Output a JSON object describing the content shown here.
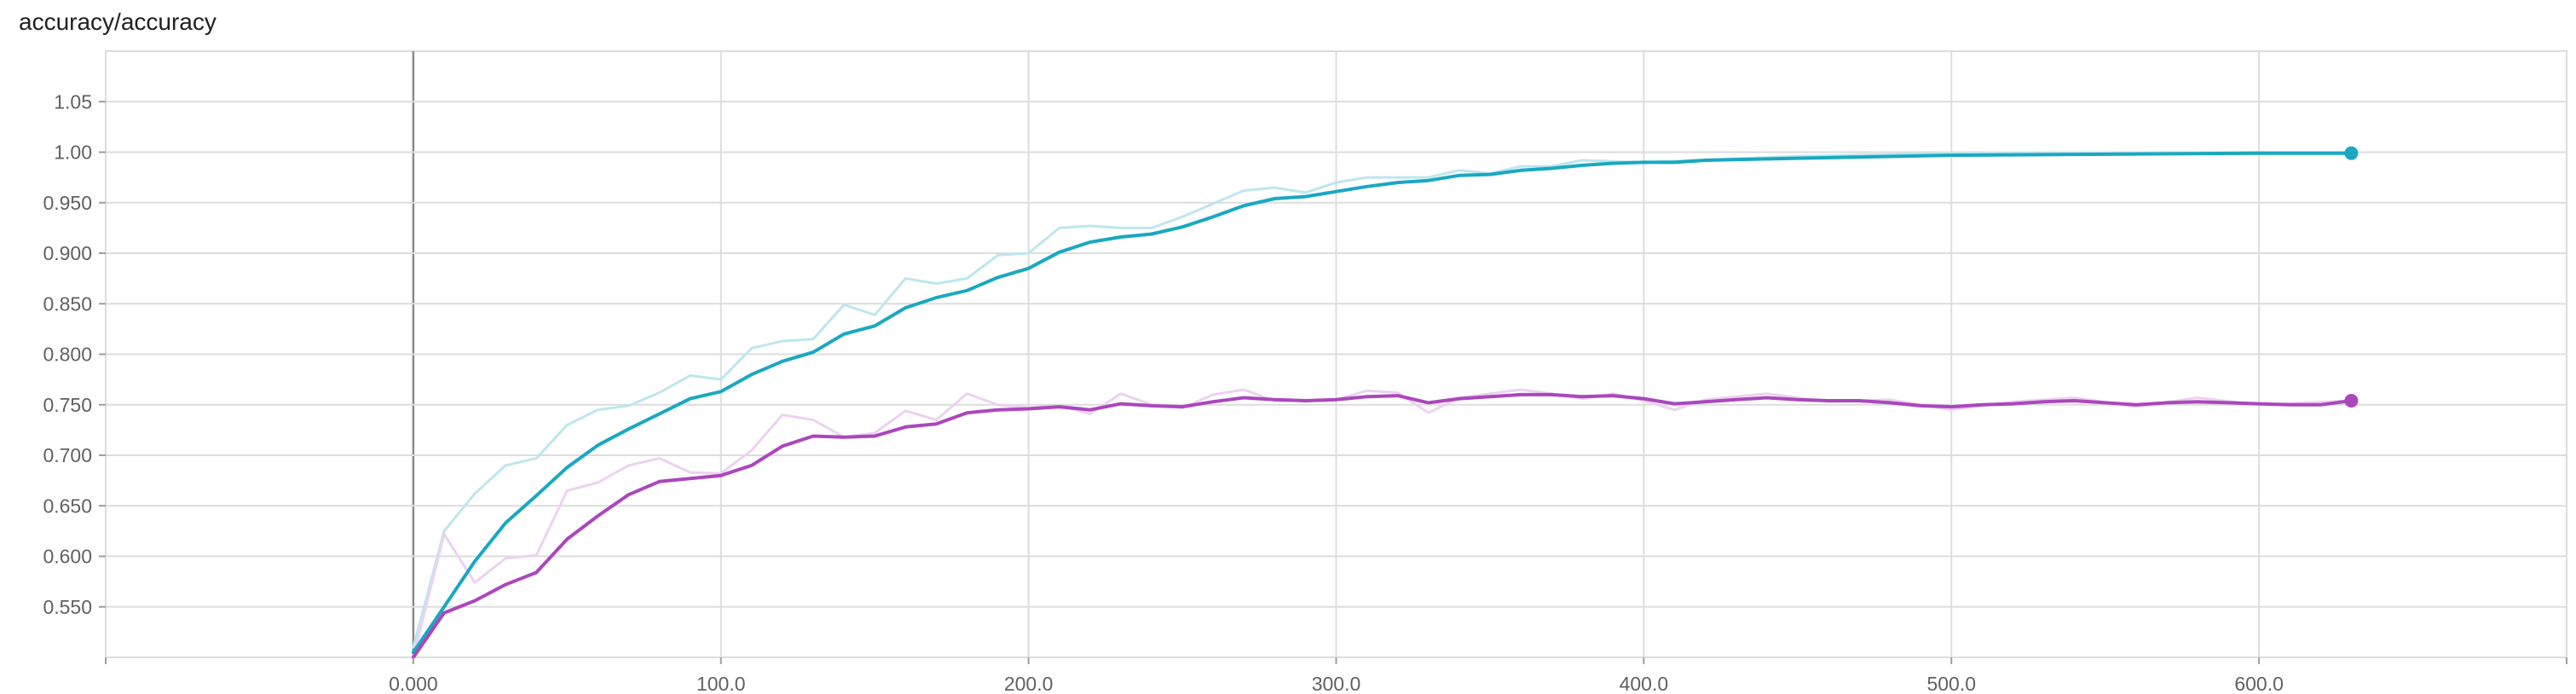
{
  "chart_data": {
    "type": "line",
    "title": "accuracy/accuracy",
    "xlabel": "",
    "ylabel": "",
    "xlim": [
      -100,
      700
    ],
    "ylim": [
      0.5,
      1.1
    ],
    "xticks": [
      0,
      100,
      200,
      300,
      400,
      500,
      600
    ],
    "xtick_labels": [
      "0.000",
      "100.0",
      "200.0",
      "300.0",
      "400.0",
      "500.0",
      "600.0"
    ],
    "yticks": [
      0.55,
      0.6,
      0.65,
      0.7,
      0.75,
      0.8,
      0.85,
      0.9,
      0.95,
      1.0,
      1.05
    ],
    "ytick_labels": [
      "0.550",
      "0.600",
      "0.650",
      "0.700",
      "0.750",
      "0.800",
      "0.850",
      "0.900",
      "0.950",
      "1.00",
      "1.05"
    ],
    "grid": true,
    "series": [
      {
        "name": "teal-smoothed",
        "color": "#1aa8c1",
        "x": [
          0,
          10,
          20,
          30,
          40,
          50,
          60,
          70,
          80,
          90,
          100,
          110,
          120,
          130,
          140,
          150,
          160,
          170,
          180,
          190,
          200,
          210,
          220,
          230,
          240,
          250,
          260,
          270,
          280,
          290,
          300,
          310,
          320,
          330,
          340,
          350,
          360,
          370,
          380,
          390,
          400,
          410,
          420,
          450,
          500,
          550,
          600,
          630
        ],
        "values": [
          0.505,
          0.55,
          0.595,
          0.633,
          0.66,
          0.688,
          0.71,
          0.726,
          0.741,
          0.756,
          0.763,
          0.78,
          0.793,
          0.802,
          0.82,
          0.828,
          0.846,
          0.856,
          0.863,
          0.876,
          0.885,
          0.901,
          0.911,
          0.916,
          0.919,
          0.926,
          0.936,
          0.947,
          0.954,
          0.956,
          0.961,
          0.966,
          0.97,
          0.972,
          0.977,
          0.978,
          0.982,
          0.984,
          0.987,
          0.989,
          0.99,
          0.99,
          0.992,
          0.994,
          0.997,
          0.998,
          0.999,
          0.999
        ]
      },
      {
        "name": "teal-raw",
        "color": "#bde6ee",
        "x": [
          0,
          10,
          20,
          30,
          40,
          50,
          60,
          70,
          80,
          90,
          100,
          110,
          120,
          130,
          140,
          150,
          160,
          170,
          180,
          190,
          200,
          210,
          220,
          230,
          240,
          250,
          260,
          270,
          280,
          290,
          300,
          310,
          320,
          330,
          340,
          350,
          360,
          370,
          380,
          390,
          400,
          450,
          500,
          550,
          600,
          630
        ],
        "values": [
          0.51,
          0.625,
          0.662,
          0.69,
          0.697,
          0.73,
          0.745,
          0.749,
          0.762,
          0.779,
          0.775,
          0.806,
          0.813,
          0.815,
          0.849,
          0.839,
          0.875,
          0.87,
          0.875,
          0.898,
          0.9,
          0.925,
          0.927,
          0.925,
          0.925,
          0.936,
          0.949,
          0.962,
          0.965,
          0.96,
          0.97,
          0.975,
          0.975,
          0.975,
          0.982,
          0.979,
          0.986,
          0.986,
          0.992,
          0.991,
          0.99,
          0.996,
          0.999,
          0.999,
          1.0,
          1.0
        ]
      },
      {
        "name": "purple-smoothed",
        "color": "#ab47bc",
        "x": [
          0,
          10,
          20,
          30,
          40,
          50,
          60,
          70,
          80,
          90,
          100,
          110,
          120,
          130,
          140,
          150,
          160,
          170,
          180,
          190,
          200,
          210,
          220,
          230,
          240,
          250,
          260,
          270,
          280,
          290,
          300,
          310,
          320,
          330,
          340,
          350,
          360,
          370,
          380,
          390,
          400,
          410,
          420,
          430,
          440,
          450,
          460,
          470,
          480,
          490,
          500,
          510,
          520,
          530,
          540,
          550,
          560,
          570,
          580,
          590,
          600,
          610,
          620,
          630
        ],
        "values": [
          0.5,
          0.544,
          0.556,
          0.572,
          0.584,
          0.617,
          0.64,
          0.661,
          0.674,
          0.677,
          0.68,
          0.69,
          0.709,
          0.719,
          0.718,
          0.719,
          0.728,
          0.731,
          0.742,
          0.745,
          0.746,
          0.748,
          0.745,
          0.751,
          0.749,
          0.748,
          0.753,
          0.757,
          0.755,
          0.754,
          0.755,
          0.758,
          0.759,
          0.752,
          0.756,
          0.758,
          0.76,
          0.76,
          0.758,
          0.759,
          0.756,
          0.751,
          0.753,
          0.755,
          0.757,
          0.755,
          0.754,
          0.754,
          0.752,
          0.749,
          0.748,
          0.75,
          0.751,
          0.753,
          0.754,
          0.752,
          0.75,
          0.752,
          0.753,
          0.752,
          0.751,
          0.75,
          0.75,
          0.754
        ]
      },
      {
        "name": "purple-raw",
        "color": "#ecd2f0",
        "x": [
          0,
          10,
          20,
          30,
          40,
          50,
          60,
          70,
          80,
          90,
          100,
          110,
          120,
          130,
          140,
          150,
          160,
          170,
          180,
          190,
          200,
          210,
          220,
          230,
          240,
          250,
          260,
          270,
          280,
          290,
          300,
          310,
          320,
          330,
          340,
          350,
          360,
          370,
          380,
          390,
          400,
          410,
          420,
          440,
          460,
          480,
          500,
          520,
          540,
          560,
          580,
          600,
          630
        ],
        "values": [
          0.5,
          0.622,
          0.574,
          0.598,
          0.601,
          0.665,
          0.673,
          0.69,
          0.697,
          0.683,
          0.682,
          0.705,
          0.74,
          0.735,
          0.718,
          0.722,
          0.744,
          0.735,
          0.761,
          0.75,
          0.747,
          0.749,
          0.741,
          0.761,
          0.75,
          0.747,
          0.76,
          0.765,
          0.754,
          0.754,
          0.755,
          0.764,
          0.762,
          0.742,
          0.757,
          0.761,
          0.765,
          0.761,
          0.756,
          0.761,
          0.754,
          0.745,
          0.755,
          0.761,
          0.753,
          0.755,
          0.745,
          0.753,
          0.757,
          0.748,
          0.757,
          0.75,
          0.754
        ]
      }
    ],
    "endpoints": [
      {
        "name": "teal-endpoint",
        "x": 630,
        "y": 0.999,
        "color": "#1aa8c1"
      },
      {
        "name": "purple-endpoint",
        "x": 630,
        "y": 0.754,
        "color": "#ab47bc"
      }
    ]
  }
}
